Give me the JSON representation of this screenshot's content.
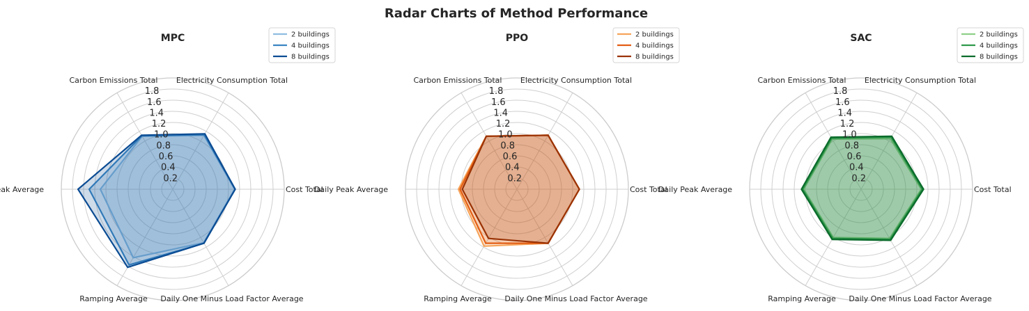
{
  "title": "Radar Charts of Method Performance",
  "chart_data": [
    {
      "type": "radar",
      "title": "MPC",
      "categories": [
        "Cost Total",
        "Electricity Consumption Total",
        "Carbon Emissions Total",
        "Daily Peak Average",
        "Ramping Average",
        "Daily One Minus Load Factor Average"
      ],
      "rlim": [
        0,
        2.0
      ],
      "rticks": [
        "0.2",
        "0.4",
        "0.6",
        "0.8",
        "1.0",
        "1.2",
        "1.4",
        "1.6",
        "1.8"
      ],
      "legend_position": "upper-right",
      "series": [
        {
          "name": "2 buildings",
          "color": "#8fbde0",
          "values": [
            1.11,
            1.12,
            1.1,
            1.3,
            1.42,
            1.11
          ]
        },
        {
          "name": "4 buildings",
          "color": "#3a85c2",
          "values": [
            1.12,
            1.13,
            1.11,
            1.5,
            1.57,
            1.12
          ]
        },
        {
          "name": "8 buildings",
          "color": "#0b4c93",
          "values": [
            1.12,
            1.15,
            1.12,
            1.7,
            1.62,
            1.12
          ]
        }
      ]
    },
    {
      "type": "radar",
      "title": "PPO",
      "categories": [
        "Cost Total",
        "Electricity Consumption Total",
        "Carbon Emissions Total",
        "Daily Peak Average",
        "Ramping Average",
        "Daily One Minus Load Factor Average"
      ],
      "rlim": [
        0,
        2.0
      ],
      "rticks": [
        "0.2",
        "0.4",
        "0.6",
        "0.8",
        "1.0",
        "1.2",
        "1.4",
        "1.6",
        "1.8"
      ],
      "legend_position": "upper-right",
      "series": [
        {
          "name": "2 buildings",
          "color": "#f6a45a",
          "values": [
            1.12,
            1.12,
            1.1,
            1.05,
            1.18,
            1.12
          ]
        },
        {
          "name": "4 buildings",
          "color": "#e35e14",
          "values": [
            1.12,
            1.12,
            1.1,
            1.02,
            1.12,
            1.12
          ]
        },
        {
          "name": "8 buildings",
          "color": "#9a3306",
          "values": [
            1.12,
            1.12,
            1.1,
            0.98,
            1.02,
            1.12
          ]
        }
      ]
    },
    {
      "type": "radar",
      "title": "SAC",
      "categories": [
        "Cost Total",
        "Electricity Consumption Total",
        "Carbon Emissions Total",
        "Daily Peak Average",
        "Ramping Average",
        "Daily One Minus Load Factor Average"
      ],
      "rlim": [
        0,
        2.0
      ],
      "rticks": [
        "0.2",
        "0.4",
        "0.6",
        "0.8",
        "1.0",
        "1.2",
        "1.4",
        "1.6",
        "1.8"
      ],
      "legend_position": "upper-right",
      "series": [
        {
          "name": "2 buildings",
          "color": "#8fd08a",
          "values": [
            1.08,
            1.05,
            1.04,
            1.03,
            1.0,
            1.02
          ]
        },
        {
          "name": "4 buildings",
          "color": "#2e9a4a",
          "values": [
            1.1,
            1.08,
            1.06,
            1.05,
            1.02,
            1.04
          ]
        },
        {
          "name": "8 buildings",
          "color": "#0a6b2b",
          "values": [
            1.12,
            1.1,
            1.08,
            1.07,
            1.04,
            1.06
          ]
        }
      ]
    }
  ]
}
